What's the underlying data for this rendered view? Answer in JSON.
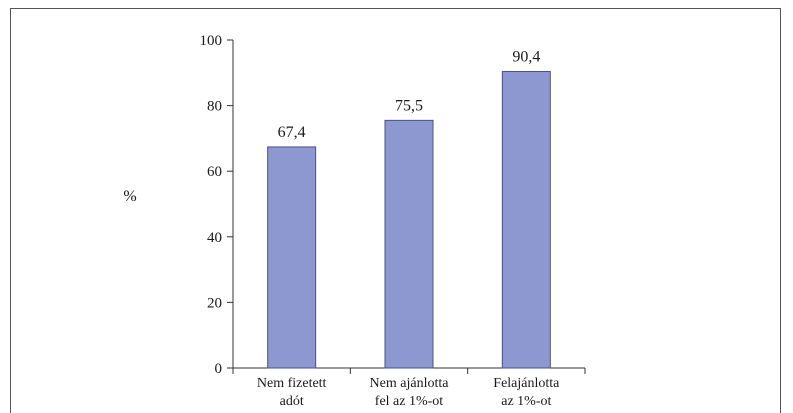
{
  "chart_data": {
    "type": "bar",
    "categories": [
      [
        "Nem fizetett",
        "adót"
      ],
      [
        "Nem ajánlotta",
        "fel az 1%-ot"
      ],
      [
        "Felajánlotta",
        "az 1%-ot"
      ]
    ],
    "values": [
      67.4,
      75.5,
      90.4
    ],
    "data_labels": [
      "67,4",
      "75,5",
      "90,4"
    ],
    "ylabel": "%",
    "ylim": [
      0,
      100
    ],
    "yticks": [
      0,
      20,
      40,
      60,
      80,
      100
    ],
    "bar_color": "#8e98d0",
    "bar_edge_color": "#4a4f8a",
    "grid": false,
    "legend": "none"
  }
}
